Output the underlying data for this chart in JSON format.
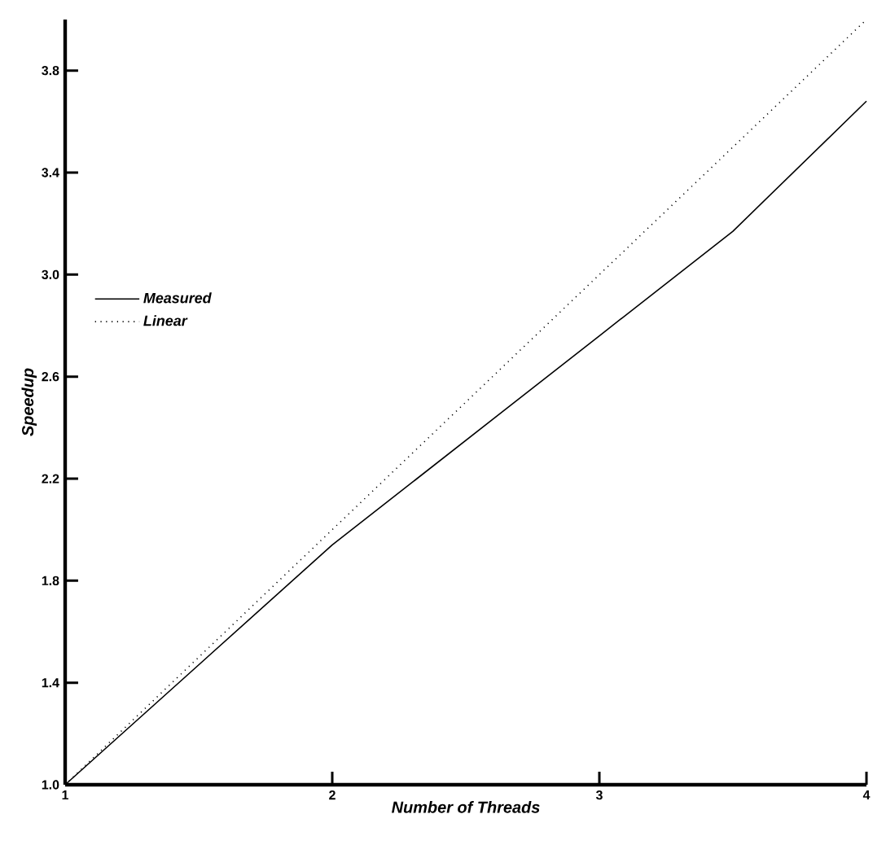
{
  "chart_data": {
    "type": "line",
    "xlabel": "Number of Threads",
    "ylabel": "Speedup",
    "x": [
      1,
      2,
      3,
      3.5,
      4
    ],
    "series": [
      {
        "name": "Measured",
        "color": "#000000",
        "line_style": "solid",
        "values": [
          1.0,
          1.94,
          2.76,
          3.17,
          3.68
        ]
      },
      {
        "name": "Linear",
        "color": "#000000",
        "line_style": "dotted",
        "x": [
          1,
          2,
          3,
          4
        ],
        "values": [
          1,
          2,
          3,
          4
        ]
      }
    ],
    "xlim": [
      1,
      4
    ],
    "ylim": [
      1.0,
      4.0
    ],
    "xticks": [
      1,
      2,
      3,
      4
    ],
    "yticks": [
      {
        "value": 1.0,
        "label": "1.0"
      },
      {
        "value": 1.4,
        "label": "1.4"
      },
      {
        "value": 1.8,
        "label": "1.8"
      },
      {
        "value": 2.2,
        "label": "2.2"
      },
      {
        "value": 2.6,
        "label": "2.6"
      },
      {
        "value": 3.0,
        "label": "3.0"
      },
      {
        "value": 3.4,
        "label": "3.4"
      },
      {
        "value": 3.8,
        "label": "3.8"
      }
    ],
    "legend": "left",
    "grid": false
  }
}
